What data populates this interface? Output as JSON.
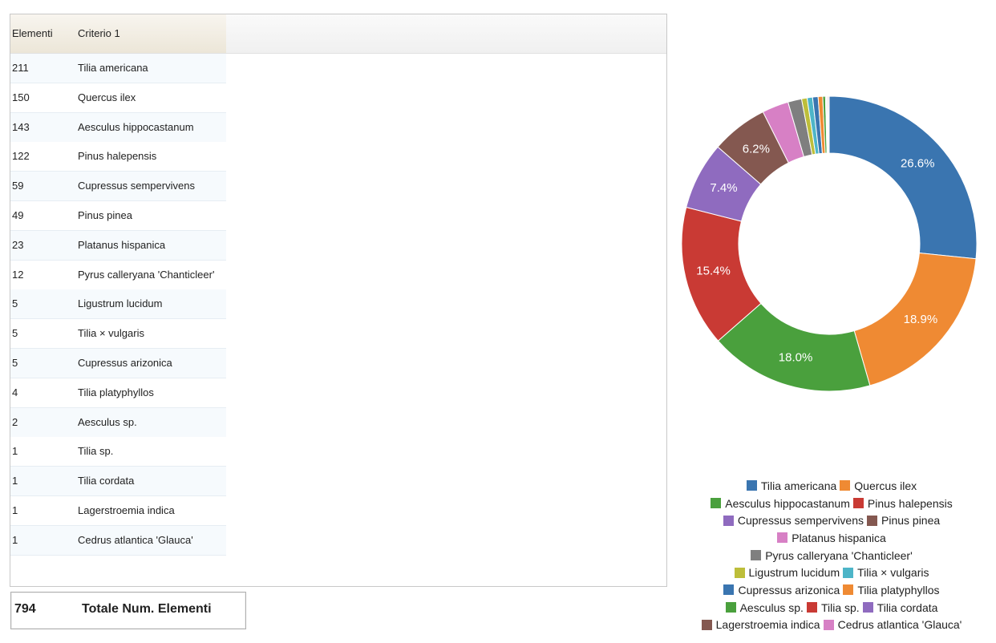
{
  "table": {
    "headers": [
      "Elementi",
      "Criterio 1"
    ],
    "rows": [
      [
        211,
        "Tilia americana"
      ],
      [
        150,
        "Quercus ilex"
      ],
      [
        143,
        "Aesculus hippocastanum"
      ],
      [
        122,
        "Pinus halepensis"
      ],
      [
        59,
        "Cupressus sempervivens"
      ],
      [
        49,
        "Pinus pinea"
      ],
      [
        23,
        "Platanus hispanica"
      ],
      [
        12,
        "Pyrus calleryana 'Chanticleer'"
      ],
      [
        5,
        "Ligustrum lucidum"
      ],
      [
        5,
        "Tilia × vulgaris"
      ],
      [
        5,
        "Cupressus arizonica"
      ],
      [
        4,
        "Tilia platyphyllos"
      ],
      [
        2,
        "Aesculus sp."
      ],
      [
        1,
        "Tilia sp."
      ],
      [
        1,
        "Tilia cordata"
      ],
      [
        1,
        "Lagerstroemia indica"
      ],
      [
        1,
        "Cedrus atlantica 'Glauca'"
      ]
    ]
  },
  "total": {
    "value": 794,
    "label": "Totale Num. Elementi"
  },
  "chart_data": {
    "type": "pie",
    "categories": [
      "Tilia americana",
      "Quercus ilex",
      "Aesculus hippocastanum",
      "Pinus halepensis",
      "Cupressus sempervivens",
      "Pinus pinea",
      "Platanus hispanica",
      "Pyrus calleryana 'Chanticleer'",
      "Ligustrum lucidum",
      "Tilia × vulgaris",
      "Cupressus arizonica",
      "Tilia platyphyllos",
      "Aesculus sp.",
      "Tilia sp.",
      "Tilia cordata",
      "Lagerstroemia indica",
      "Cedrus atlantica 'Glauca'"
    ],
    "values": [
      26.6,
      18.9,
      18.0,
      15.4,
      7.4,
      6.2,
      2.9,
      1.5,
      0.6,
      0.6,
      0.6,
      0.5,
      0.3,
      0.1,
      0.1,
      0.1,
      0.1
    ],
    "value_labels": [
      "26.6%",
      "18.9%",
      "18.0%",
      "15.4%",
      "7.4%",
      "6.2%",
      null,
      null,
      null,
      null,
      null,
      null,
      null,
      null,
      null,
      null,
      null
    ],
    "colors": [
      "#3a75b0",
      "#ef8a33",
      "#4aa03d",
      "#c93a34",
      "#8f6bbf",
      "#845850",
      "#d780c5",
      "#7f7f7f",
      "#bdbe3a",
      "#4db5c8",
      "#3a75b0",
      "#ef8a33",
      "#4aa03d",
      "#c93a34",
      "#8f6bbf",
      "#845850",
      "#d780c5"
    ],
    "donut": true,
    "legend": "bottom"
  }
}
